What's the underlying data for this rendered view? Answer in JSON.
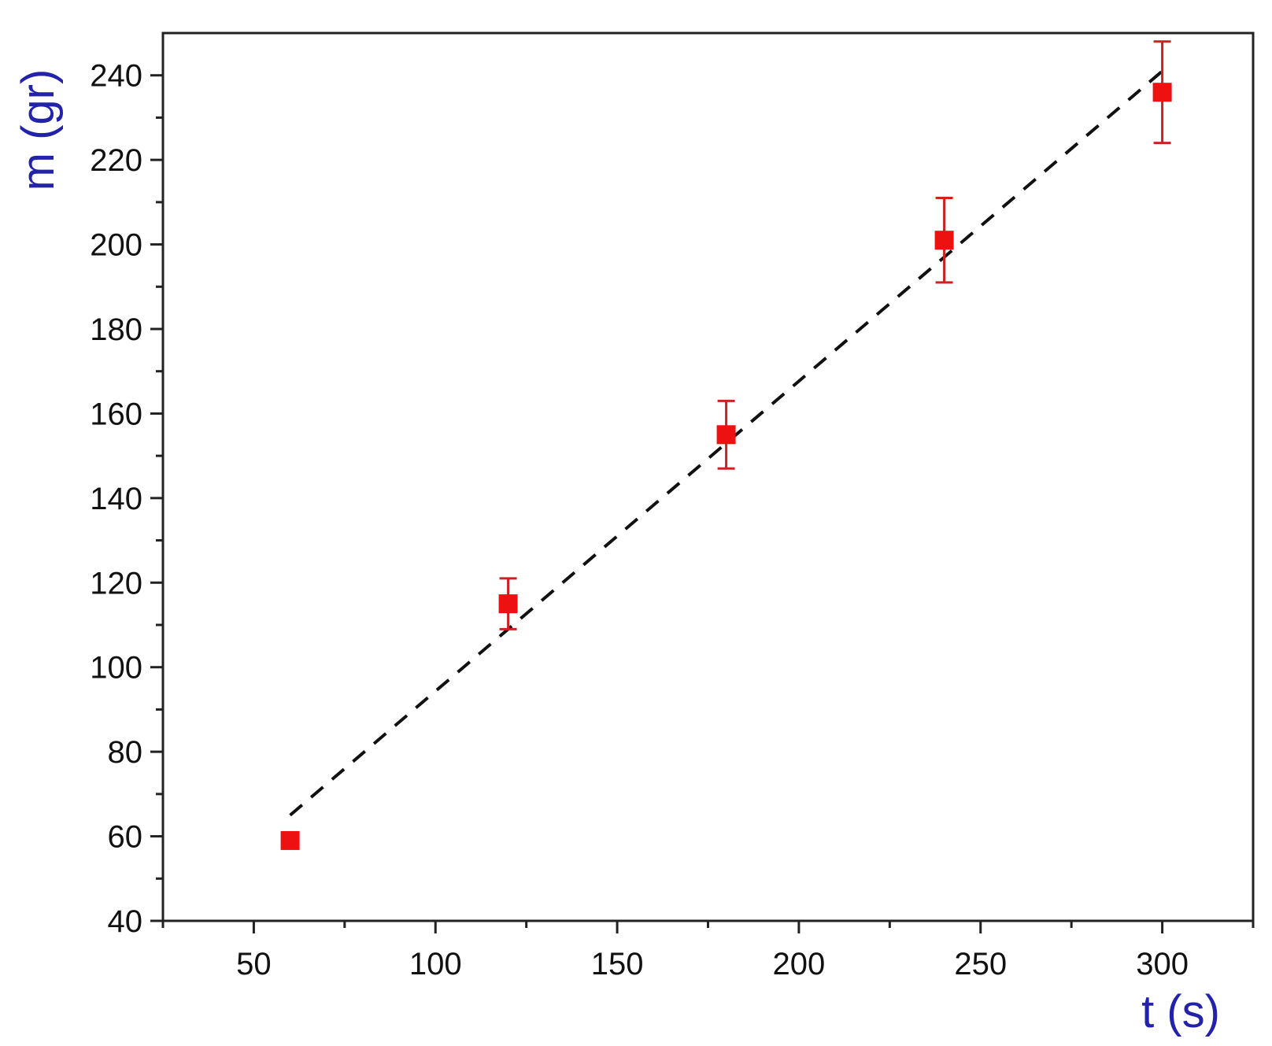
{
  "chart_data": {
    "type": "scatter",
    "xlabel": "t (s)",
    "ylabel": "m (gr)",
    "xlim": [
      25,
      325
    ],
    "ylim": [
      40,
      250
    ],
    "x_ticks": [
      50,
      100,
      150,
      200,
      250,
      300
    ],
    "y_ticks": [
      40,
      60,
      80,
      100,
      120,
      140,
      160,
      180,
      200,
      220,
      240
    ],
    "x_tick_labels": [
      "50",
      "100",
      "150",
      "200",
      "250",
      "300"
    ],
    "y_tick_labels": [
      "40",
      "60",
      "80",
      "100",
      "120",
      "140",
      "160",
      "180",
      "200",
      "220",
      "240"
    ],
    "grid": false,
    "legend": "none",
    "points": [
      {
        "x": 60,
        "y": 59,
        "err": 0
      },
      {
        "x": 120,
        "y": 115,
        "err": 6
      },
      {
        "x": 180,
        "y": 155,
        "err": 8
      },
      {
        "x": 240,
        "y": 201,
        "err": 10
      },
      {
        "x": 300,
        "y": 236,
        "err": 12
      }
    ],
    "fit_line": {
      "style": "dashed",
      "x": [
        60,
        300
      ],
      "y": [
        65,
        241
      ]
    },
    "colors": {
      "points": "#ee1111",
      "errorbars": "#cc2222",
      "fit": "#111111",
      "axis_titles": "#2222aa",
      "axes": "#222222"
    }
  }
}
